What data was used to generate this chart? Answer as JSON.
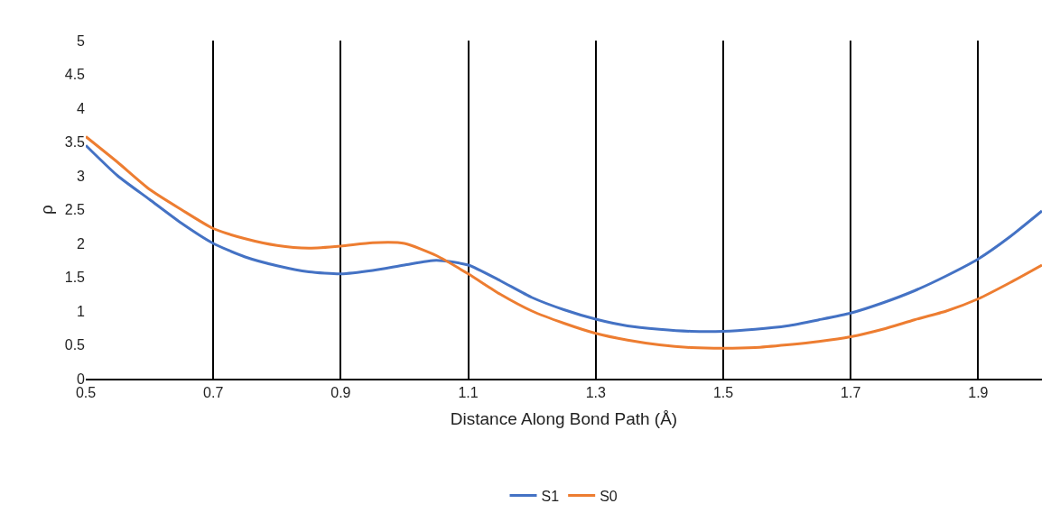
{
  "chart_data": {
    "type": "line",
    "xlabel": "Distance Along Bond Path (Å)",
    "ylabel": "ρ",
    "x": [
      0.5,
      0.55,
      0.6,
      0.65,
      0.7,
      0.75,
      0.8,
      0.85,
      0.9,
      0.95,
      1.0,
      1.05,
      1.1,
      1.15,
      1.2,
      1.25,
      1.3,
      1.35,
      1.4,
      1.45,
      1.5,
      1.55,
      1.6,
      1.65,
      1.7,
      1.75,
      1.8,
      1.85,
      1.9,
      1.95,
      2.0
    ],
    "series": [
      {
        "name": "S1",
        "color": "#4472c4",
        "values": [
          3.45,
          3.0,
          2.65,
          2.3,
          2.0,
          1.8,
          1.67,
          1.58,
          1.55,
          1.6,
          1.68,
          1.75,
          1.68,
          1.45,
          1.2,
          1.02,
          0.88,
          0.78,
          0.73,
          0.7,
          0.7,
          0.73,
          0.78,
          0.87,
          0.97,
          1.12,
          1.3,
          1.52,
          1.77,
          2.1,
          2.48
        ]
      },
      {
        "name": "S0",
        "color": "#ed7d31",
        "values": [
          3.58,
          3.2,
          2.8,
          2.5,
          2.22,
          2.07,
          1.97,
          1.93,
          1.96,
          2.01,
          2.0,
          1.82,
          1.55,
          1.25,
          1.0,
          0.82,
          0.67,
          0.57,
          0.5,
          0.46,
          0.45,
          0.46,
          0.5,
          0.55,
          0.62,
          0.73,
          0.87,
          1.0,
          1.18,
          1.42,
          1.68
        ]
      }
    ],
    "xlim": [
      0.5,
      2.0
    ],
    "xticks": [
      0.5,
      0.7,
      0.9,
      1.1,
      1.3,
      1.5,
      1.7,
      1.9
    ],
    "ylim": [
      0,
      5
    ],
    "yticks": [
      0,
      0.5,
      1,
      1.5,
      2,
      2.5,
      3,
      3.5,
      4,
      4.5,
      5
    ],
    "grid": "x",
    "legend": "bottom",
    "marker": "none",
    "line_style": "solid"
  }
}
